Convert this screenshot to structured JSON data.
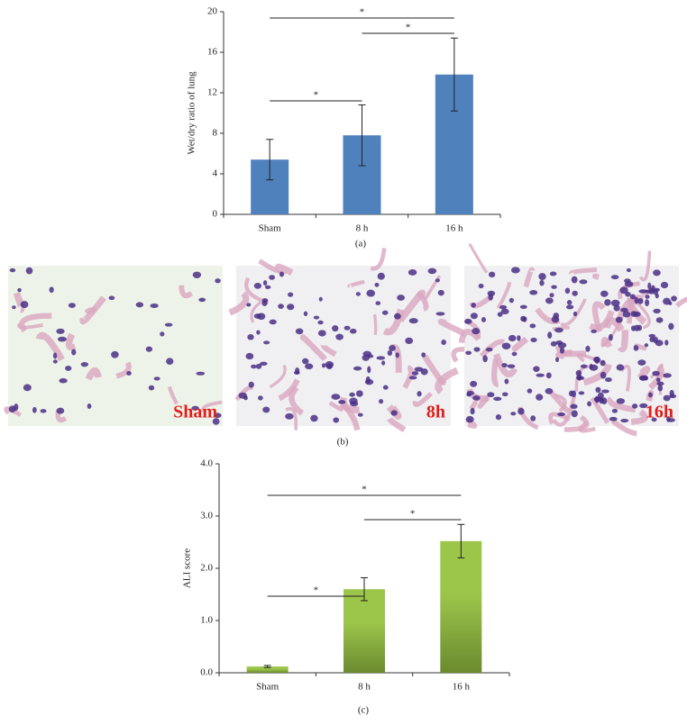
{
  "chart_data": [
    {
      "type": "bar",
      "ylabel": "Wet/dry ratio of lung",
      "categories": [
        "Sham",
        "8 h",
        "16 h"
      ],
      "values": [
        5.4,
        7.8,
        13.8
      ],
      "errors": [
        2.0,
        3.0,
        3.6
      ],
      "color": "#4f81bd",
      "ylim": [
        0,
        20
      ],
      "yticks": [
        0,
        4,
        8,
        12,
        16,
        20
      ],
      "annotations": [
        {
          "text": "*",
          "between": [
            "Sham",
            "8 h"
          ]
        },
        {
          "text": "*",
          "between": [
            "8 h",
            "16 h"
          ]
        },
        {
          "text": "*",
          "between": [
            "Sham",
            "16 h"
          ]
        }
      ]
    },
    {
      "type": "bar",
      "ylabel": "ALI score",
      "categories": [
        "Sham",
        "8 h",
        "16 h"
      ],
      "values": [
        0.12,
        1.6,
        2.52
      ],
      "errors": [
        0.02,
        0.22,
        0.32
      ],
      "color": "#9cc64a",
      "ylim": [
        0,
        4
      ],
      "yticks": [
        {
          "value": 0,
          "label": "0.0"
        },
        {
          "value": 1,
          "label": "1.0"
        },
        {
          "value": 2,
          "label": "2.0"
        },
        {
          "value": 3,
          "label": "3.0"
        },
        {
          "value": 4,
          "label": "4.0"
        }
      ],
      "annotations": [
        {
          "text": "*",
          "between": [
            "Sham",
            "8 h"
          ]
        },
        {
          "text": "*",
          "between": [
            "8 h",
            "16 h"
          ]
        },
        {
          "text": "*",
          "between": [
            "Sham",
            "16 h"
          ]
        }
      ]
    }
  ],
  "figure": {
    "panel_labels": [
      "(a)",
      "(b)",
      "(c)"
    ],
    "micrographs": [
      "Sham",
      "8h",
      "16h"
    ]
  }
}
